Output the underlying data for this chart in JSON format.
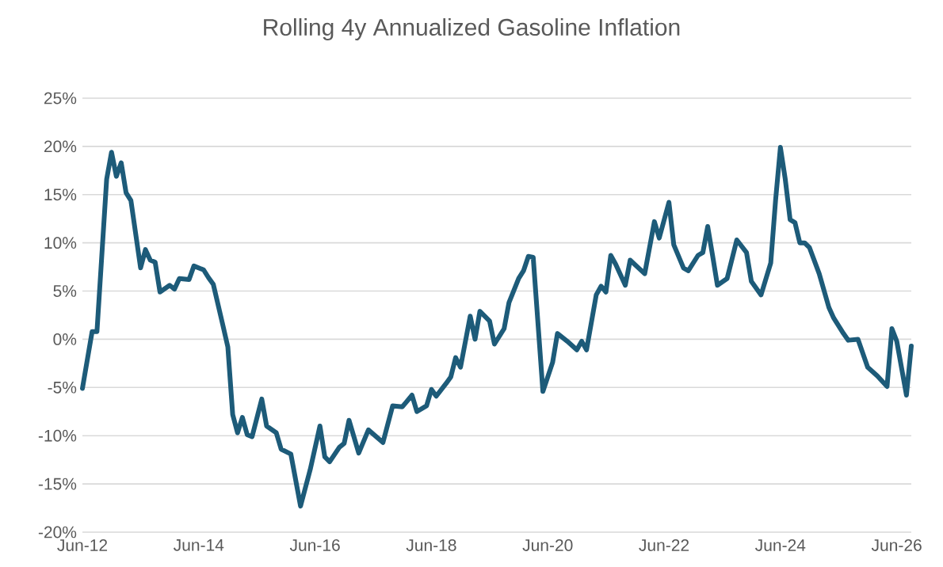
{
  "chart_data": {
    "type": "line",
    "title": "Rolling 4y Annualized Gasoline Inflation",
    "x": [
      "2012-06",
      "2012-08",
      "2012-09",
      "2012-11",
      "2012-12",
      "2013-01",
      "2013-02",
      "2013-03",
      "2013-04",
      "2013-06",
      "2013-07",
      "2013-08",
      "2013-09",
      "2013-10",
      "2013-12",
      "2014-01",
      "2014-02",
      "2014-04",
      "2014-05",
      "2014-07",
      "2014-08",
      "2014-09",
      "2014-11",
      "2014-12",
      "2015-01",
      "2015-02",
      "2015-03",
      "2015-04",
      "2015-05",
      "2015-07",
      "2015-08",
      "2015-10",
      "2015-11",
      "2016-01",
      "2016-03",
      "2016-05",
      "2016-07",
      "2016-08",
      "2016-09",
      "2016-11",
      "2016-12",
      "2017-01",
      "2017-03",
      "2017-05",
      "2017-08",
      "2017-10",
      "2017-12",
      "2018-02",
      "2018-03",
      "2018-05",
      "2018-06",
      "2018-07",
      "2018-09",
      "2018-10",
      "2018-11",
      "2018-12",
      "2019-02",
      "2019-03",
      "2019-04",
      "2019-06",
      "2019-07",
      "2019-09",
      "2019-10",
      "2019-12",
      "2020-01",
      "2020-02",
      "2020-03",
      "2020-05",
      "2020-07",
      "2020-08",
      "2020-10",
      "2020-12",
      "2021-01",
      "2021-02",
      "2021-04",
      "2021-05",
      "2021-06",
      "2021-07",
      "2021-08",
      "2021-10",
      "2021-11",
      "2022-02",
      "2022-04",
      "2022-05",
      "2022-07",
      "2022-08",
      "2022-10",
      "2022-11",
      "2023-01",
      "2023-02",
      "2023-03",
      "2023-04",
      "2023-05",
      "2023-07",
      "2023-09",
      "2023-11",
      "2023-12",
      "2024-02",
      "2024-04",
      "2024-05",
      "2024-06",
      "2024-07",
      "2024-08",
      "2024-09",
      "2024-10",
      "2024-11",
      "2024-12",
      "2025-02",
      "2025-04",
      "2025-05",
      "2025-07",
      "2025-08",
      "2025-10",
      "2025-12",
      "2026-02",
      "2026-04",
      "2026-05",
      "2026-06",
      "2026-08",
      "2026-09"
    ],
    "values": [
      -5.1,
      0.8,
      0.8,
      16.6,
      19.4,
      16.9,
      18.3,
      15.2,
      14.4,
      7.4,
      9.3,
      8.2,
      8.0,
      4.9,
      5.6,
      5.2,
      6.3,
      6.2,
      7.6,
      7.2,
      6.4,
      5.7,
      1.4,
      -0.8,
      -7.8,
      -9.7,
      -8.1,
      -9.9,
      -10.1,
      -6.2,
      -9.0,
      -9.7,
      -11.4,
      -11.9,
      -17.3,
      -13.5,
      -9.0,
      -12.2,
      -12.7,
      -11.2,
      -10.8,
      -8.4,
      -11.8,
      -9.4,
      -10.7,
      -6.9,
      -7.0,
      -5.8,
      -7.5,
      -6.9,
      -5.2,
      -5.9,
      -4.6,
      -3.9,
      -1.9,
      -2.9,
      2.4,
      0.0,
      2.9,
      1.9,
      -0.5,
      1.1,
      3.8,
      6.3,
      7.1,
      8.6,
      8.5,
      -5.4,
      -2.4,
      0.6,
      -0.2,
      -1.1,
      -0.2,
      -1.1,
      4.6,
      5.5,
      4.9,
      8.7,
      7.8,
      5.6,
      8.2,
      6.8,
      12.2,
      10.5,
      14.2,
      9.8,
      7.4,
      7.1,
      8.7,
      9.0,
      11.7,
      8.7,
      5.6,
      6.3,
      10.3,
      9.0,
      6.0,
      4.6,
      7.9,
      14.4,
      19.9,
      16.6,
      12.4,
      12.1,
      10.0,
      10.0,
      9.5,
      6.8,
      3.3,
      2.2,
      0.6,
      -0.1,
      0.0,
      -2.9,
      -3.8,
      -4.9,
      1.1,
      -0.2,
      -5.8,
      -0.7
    ],
    "color": "#1d5b79",
    "xlim": [
      "2012-06",
      "2026-09"
    ],
    "xticks": [
      {
        "value": "2012-06",
        "label": "Jun-12"
      },
      {
        "value": "2014-06",
        "label": "Jun-14"
      },
      {
        "value": "2016-06",
        "label": "Jun-16"
      },
      {
        "value": "2018-06",
        "label": "Jun-18"
      },
      {
        "value": "2020-06",
        "label": "Jun-20"
      },
      {
        "value": "2022-06",
        "label": "Jun-22"
      },
      {
        "value": "2024-06",
        "label": "Jun-24"
      },
      {
        "value": "2026-06",
        "label": "Jun-26"
      }
    ],
    "ylim": [
      -20,
      25
    ],
    "yticks": [
      {
        "value": -20,
        "label": "-20%"
      },
      {
        "value": -15,
        "label": "-15%"
      },
      {
        "value": -10,
        "label": "-10%"
      },
      {
        "value": -5,
        "label": "-5%"
      },
      {
        "value": 0,
        "label": "0%"
      },
      {
        "value": 5,
        "label": "5%"
      },
      {
        "value": 10,
        "label": "10%"
      },
      {
        "value": 15,
        "label": "15%"
      },
      {
        "value": 20,
        "label": "20%"
      },
      {
        "value": 25,
        "label": "25%"
      }
    ],
    "grid": "y"
  }
}
